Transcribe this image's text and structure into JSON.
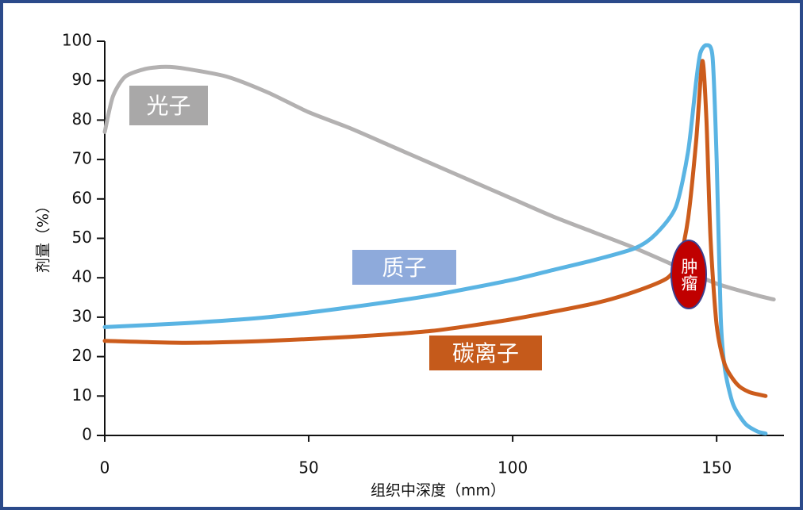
{
  "chart_data": {
    "type": "line",
    "xlabel": "组织中深度（mm）",
    "ylabel": "剂量（%）",
    "xlim": [
      0,
      166.5
    ],
    "ylim": [
      0,
      100
    ],
    "xticks": [
      0,
      50,
      100,
      150
    ],
    "yticks": [
      0,
      10,
      20,
      30,
      40,
      50,
      60,
      70,
      80,
      90,
      100
    ],
    "annotations": [
      "肿瘤"
    ],
    "series": [
      {
        "name": "光子",
        "color": "#b3b1b1",
        "label_color": "#a9a8a8",
        "x": [
          0,
          2,
          5,
          10,
          15,
          20,
          30,
          40,
          50,
          60,
          70,
          80,
          90,
          100,
          110,
          120,
          130,
          140,
          150,
          160,
          164
        ],
        "values": [
          77,
          86,
          91,
          93,
          93.5,
          93,
          91,
          87,
          82,
          78,
          73.5,
          69,
          64.5,
          60,
          55.5,
          51.5,
          47.5,
          43,
          38.5,
          35.5,
          34.5
        ]
      },
      {
        "name": "质子",
        "color": "#5ab4e3",
        "label_color": "#8eaadb",
        "x": [
          0,
          20,
          40,
          60,
          80,
          100,
          110,
          120,
          130,
          135,
          140,
          143,
          145,
          146,
          147.5,
          149,
          150,
          151,
          152,
          154,
          157,
          160,
          162
        ],
        "values": [
          27.5,
          28.5,
          30,
          32.5,
          35.5,
          39.5,
          42,
          44.5,
          47.5,
          51,
          58,
          72,
          90,
          97,
          99,
          96,
          70,
          30,
          17,
          8,
          3,
          1,
          0.5
        ]
      },
      {
        "name": "碳离子",
        "color": "#cc5c1c",
        "label_color": "#c55a1b",
        "x": [
          0,
          20,
          40,
          60,
          80,
          100,
          120,
          130,
          138,
          141,
          143,
          145,
          146.5,
          147.5,
          148.5,
          150,
          152,
          155,
          158,
          162
        ],
        "values": [
          24,
          23.5,
          24,
          25,
          26.5,
          29.5,
          33.5,
          36.5,
          40,
          45,
          55,
          75,
          95,
          80,
          50,
          28,
          18,
          13,
          11,
          10
        ]
      }
    ]
  }
}
